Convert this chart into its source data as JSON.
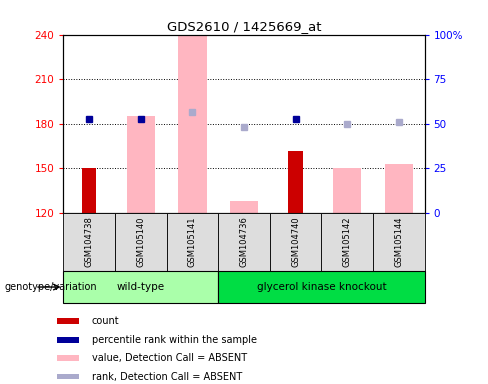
{
  "title": "GDS2610 / 1425669_at",
  "samples": [
    "GSM104738",
    "GSM105140",
    "GSM105141",
    "GSM104736",
    "GSM104740",
    "GSM105142",
    "GSM105144"
  ],
  "groups": [
    {
      "name": "wild-type",
      "indices": [
        0,
        1,
        2
      ],
      "color": "#AAFFAA"
    },
    {
      "name": "glycerol kinase knockout",
      "indices": [
        3,
        4,
        5,
        6
      ],
      "color": "#00DD44"
    }
  ],
  "ylim_left": [
    120,
    240
  ],
  "ylim_right": [
    0,
    100
  ],
  "yticks_left": [
    120,
    150,
    180,
    210,
    240
  ],
  "yticks_right": [
    0,
    25,
    50,
    75,
    100
  ],
  "ytick_labels_right": [
    "0",
    "25",
    "50",
    "75",
    "100%"
  ],
  "red_bars": [
    150,
    0,
    0,
    0,
    162,
    0,
    0
  ],
  "pink_bars": [
    0,
    185,
    240,
    128,
    0,
    150,
    153
  ],
  "blue_squares_left": [
    183,
    183,
    0,
    0,
    183,
    0,
    0
  ],
  "light_blue_squares_left": [
    0,
    0,
    188,
    178,
    0,
    180,
    181
  ],
  "bar_bottom": 120,
  "red_color": "#CC0000",
  "pink_color": "#FFB6C1",
  "blue_color": "#000099",
  "light_blue_color": "#AAAACC",
  "bar_width": 0.55,
  "red_bar_width": 0.28,
  "legend_items": [
    {
      "label": "count",
      "color": "#CC0000"
    },
    {
      "label": "percentile rank within the sample",
      "color": "#000099"
    },
    {
      "label": "value, Detection Call = ABSENT",
      "color": "#FFB6C1"
    },
    {
      "label": "rank, Detection Call = ABSENT",
      "color": "#AAAACC"
    }
  ]
}
